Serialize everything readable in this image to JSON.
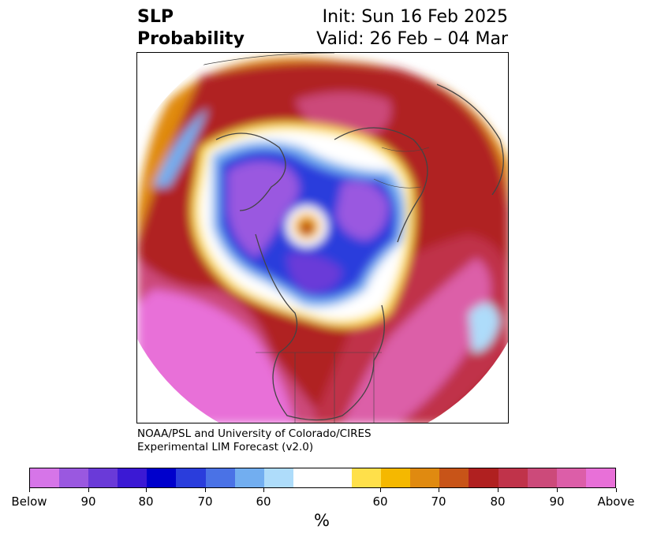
{
  "title": {
    "left_line1": "SLP",
    "left_line2": "Probability",
    "right_line1": "Init: Sun 16 Feb 2025",
    "right_line2": "Valid: 26 Feb – 04 Mar"
  },
  "credit": {
    "line1": "NOAA/PSL and University of Colorado/CIRES",
    "line2": "Experimental LIM Forecast (v2.0)"
  },
  "colorbar": {
    "colors": [
      "#d675e8",
      "#9a58e0",
      "#6a3ad8",
      "#3b19d4",
      "#0000cc",
      "#2a3ddc",
      "#4a72e6",
      "#72aef0",
      "#aedcfa",
      "#ffffff",
      "#ffffff",
      "#ffe04a",
      "#f5b800",
      "#e08a10",
      "#c85418",
      "#b02020",
      "#c0334a",
      "#cc4a7a",
      "#dc5ea8",
      "#e870d8"
    ],
    "labels": [
      "Below",
      "90",
      "80",
      "70",
      "60",
      "60",
      "70",
      "80",
      "90",
      "Above"
    ],
    "unit": "%"
  }
}
